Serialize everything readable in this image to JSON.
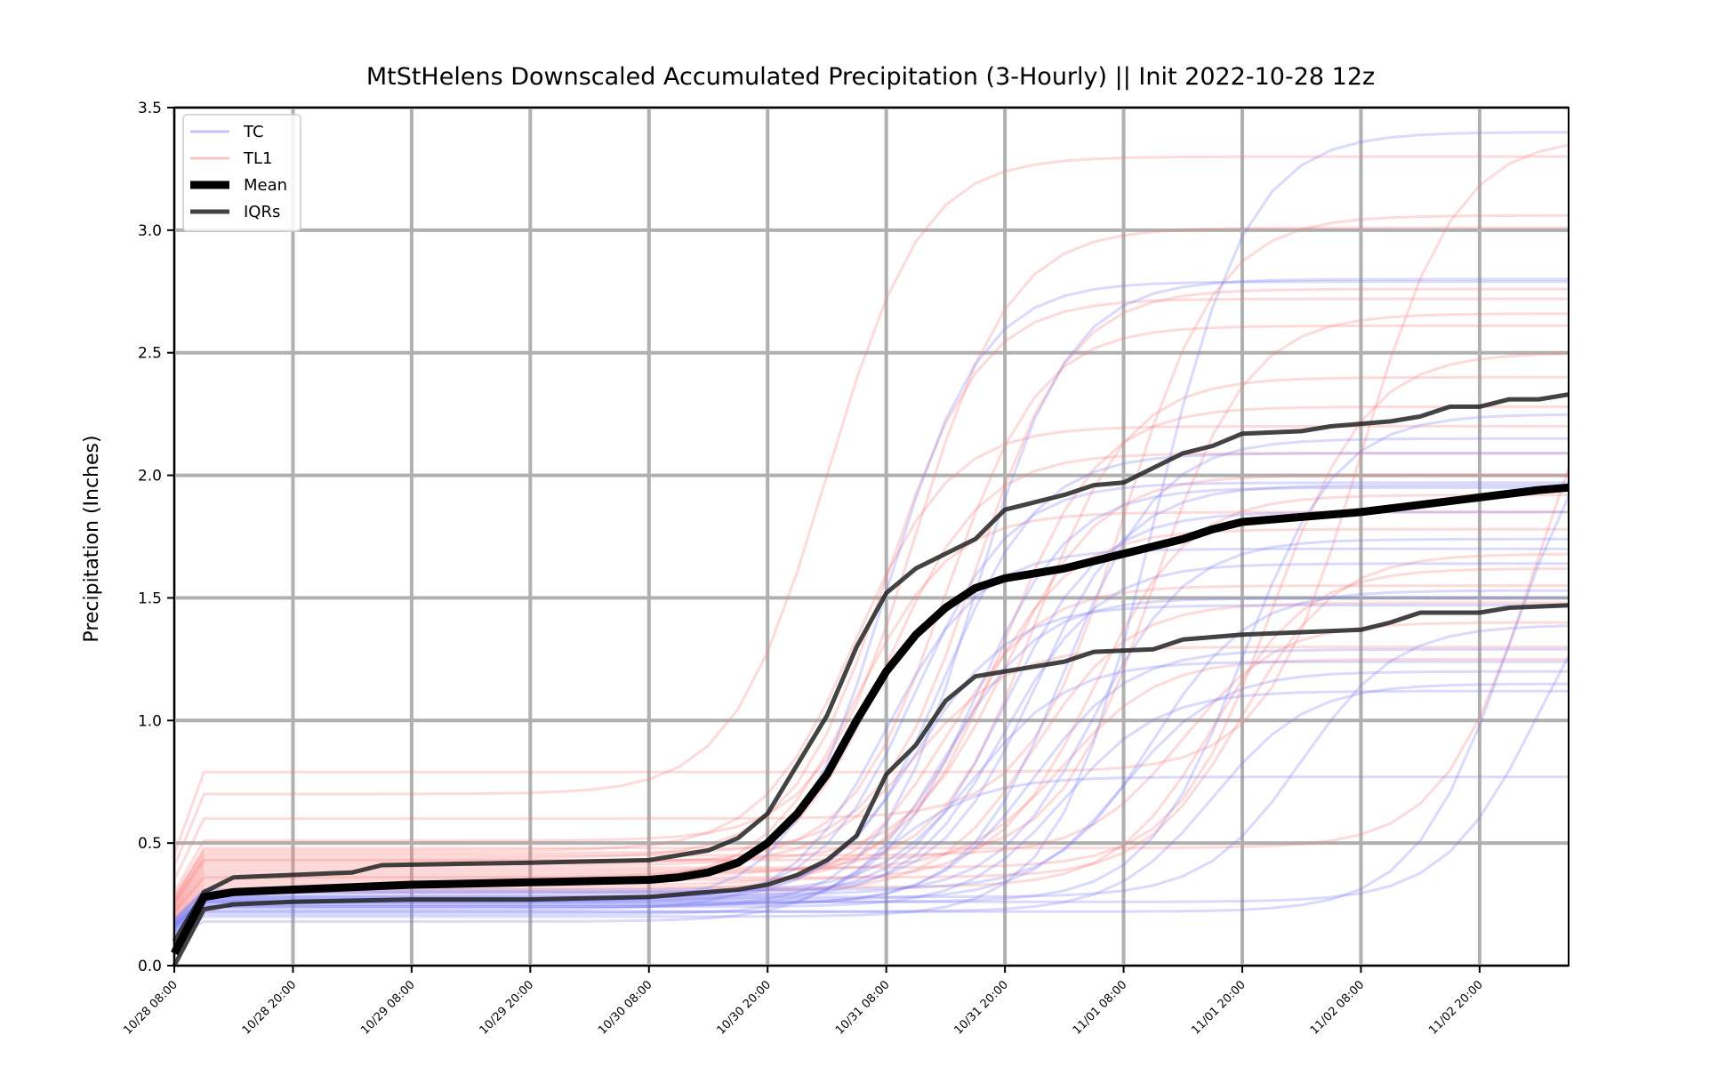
{
  "chart_data": {
    "type": "line",
    "title": "MtStHelens Downscaled Accumulated Precipitation (3-Hourly) || Init 2022-10-28 12z",
    "xlabel": "",
    "ylabel": "Precipitation (Inches)",
    "ylim": [
      0,
      3.5
    ],
    "xlim": [
      0,
      47
    ],
    "grid": true,
    "legend_position": "top-left",
    "x_ticks": [
      {
        "x": 0,
        "label": "10/28 08:00"
      },
      {
        "x": 4,
        "label": "10/28 20:00"
      },
      {
        "x": 8,
        "label": "10/29 08:00"
      },
      {
        "x": 12,
        "label": "10/29 20:00"
      },
      {
        "x": 16,
        "label": "10/30 08:00"
      },
      {
        "x": 20,
        "label": "10/30 20:00"
      },
      {
        "x": 24,
        "label": "10/31 08:00"
      },
      {
        "x": 28,
        "label": "10/31 20:00"
      },
      {
        "x": 32,
        "label": "11/01 08:00"
      },
      {
        "x": 36,
        "label": "11/01 20:00"
      },
      {
        "x": 40,
        "label": "11/02 08:00"
      },
      {
        "x": 44,
        "label": "11/02 20:00"
      }
    ],
    "y_ticks": [
      {
        "y": 0.0,
        "label": "0.0"
      },
      {
        "y": 0.5,
        "label": "0.5"
      },
      {
        "y": 1.0,
        "label": "1.0"
      },
      {
        "y": 1.5,
        "label": "1.5"
      },
      {
        "y": 2.0,
        "label": "2.0"
      },
      {
        "y": 2.5,
        "label": "2.5"
      },
      {
        "y": 3.0,
        "label": "3.0"
      },
      {
        "y": 3.5,
        "label": "3.5"
      }
    ],
    "legend": [
      {
        "label": "TC",
        "color": "#7a7af5"
      },
      {
        "label": "TL1",
        "color": "#f77f7f"
      },
      {
        "label": "Mean",
        "color": "#000000"
      },
      {
        "label": "IQRs",
        "color": "#222222"
      }
    ],
    "mean_series": {
      "name": "Mean",
      "color": "#000000",
      "points": [
        [
          0,
          0.05
        ],
        [
          1,
          0.28
        ],
        [
          2,
          0.3
        ],
        [
          4,
          0.31
        ],
        [
          8,
          0.33
        ],
        [
          12,
          0.34
        ],
        [
          16,
          0.35
        ],
        [
          17,
          0.36
        ],
        [
          18,
          0.38
        ],
        [
          19,
          0.42
        ],
        [
          20,
          0.5
        ],
        [
          21,
          0.62
        ],
        [
          22,
          0.78
        ],
        [
          23,
          1.0
        ],
        [
          24,
          1.2
        ],
        [
          25,
          1.35
        ],
        [
          26,
          1.46
        ],
        [
          27,
          1.54
        ],
        [
          28,
          1.58
        ],
        [
          30,
          1.62
        ],
        [
          32,
          1.68
        ],
        [
          34,
          1.74
        ],
        [
          35,
          1.78
        ],
        [
          36,
          1.81
        ],
        [
          38,
          1.83
        ],
        [
          40,
          1.85
        ],
        [
          42,
          1.88
        ],
        [
          44,
          1.91
        ],
        [
          46,
          1.94
        ],
        [
          47,
          1.95
        ]
      ]
    },
    "iqr_series": [
      {
        "name": "IQR upper",
        "color": "#222222",
        "points": [
          [
            0,
            0.1
          ],
          [
            1,
            0.3
          ],
          [
            2,
            0.36
          ],
          [
            4,
            0.37
          ],
          [
            6,
            0.38
          ],
          [
            7,
            0.41
          ],
          [
            12,
            0.42
          ],
          [
            16,
            0.43
          ],
          [
            18,
            0.47
          ],
          [
            19,
            0.52
          ],
          [
            20,
            0.62
          ],
          [
            21,
            0.82
          ],
          [
            22,
            1.02
          ],
          [
            23,
            1.3
          ],
          [
            24,
            1.52
          ],
          [
            25,
            1.62
          ],
          [
            26,
            1.68
          ],
          [
            27,
            1.74
          ],
          [
            28,
            1.86
          ],
          [
            30,
            1.92
          ],
          [
            31,
            1.96
          ],
          [
            32,
            1.97
          ],
          [
            33,
            2.03
          ],
          [
            34,
            2.09
          ],
          [
            35,
            2.12
          ],
          [
            36,
            2.17
          ],
          [
            38,
            2.18
          ],
          [
            39,
            2.2
          ],
          [
            41,
            2.22
          ],
          [
            42,
            2.24
          ],
          [
            43,
            2.28
          ],
          [
            44,
            2.28
          ],
          [
            45,
            2.31
          ],
          [
            46,
            2.31
          ],
          [
            47,
            2.33
          ]
        ]
      },
      {
        "name": "IQR lower",
        "color": "#222222",
        "points": [
          [
            0,
            0.0
          ],
          [
            1,
            0.23
          ],
          [
            2,
            0.25
          ],
          [
            4,
            0.26
          ],
          [
            8,
            0.27
          ],
          [
            12,
            0.27
          ],
          [
            16,
            0.28
          ],
          [
            18,
            0.3
          ],
          [
            19,
            0.31
          ],
          [
            20,
            0.33
          ],
          [
            21,
            0.37
          ],
          [
            22,
            0.43
          ],
          [
            23,
            0.53
          ],
          [
            24,
            0.78
          ],
          [
            25,
            0.9
          ],
          [
            26,
            1.08
          ],
          [
            27,
            1.18
          ],
          [
            28,
            1.2
          ],
          [
            30,
            1.24
          ],
          [
            31,
            1.28
          ],
          [
            33,
            1.29
          ],
          [
            34,
            1.33
          ],
          [
            36,
            1.35
          ],
          [
            38,
            1.36
          ],
          [
            40,
            1.37
          ],
          [
            41,
            1.4
          ],
          [
            42,
            1.44
          ],
          [
            44,
            1.44
          ],
          [
            45,
            1.46
          ],
          [
            47,
            1.47
          ]
        ]
      }
    ],
    "tc_members": [
      {
        "name": "TC",
        "finals": [
          3.4,
          2.8,
          2.79,
          2.4,
          2.15,
          2.09,
          1.97,
          1.96,
          1.95,
          1.8,
          1.74,
          1.7,
          1.64,
          1.53,
          1.5,
          1.47,
          1.39,
          1.29,
          1.24,
          1.2,
          1.15,
          1.12,
          0.77,
          2.25,
          1.85
        ],
        "starts": [
          0.2,
          0.24,
          0.26,
          0.22,
          0.25,
          0.28,
          0.27,
          0.3,
          0.24,
          0.26,
          0.29,
          0.23,
          0.27,
          0.31,
          0.21,
          0.26,
          0.28,
          0.25,
          0.3,
          0.27,
          0.22,
          0.24,
          0.18,
          0.26,
          0.28
        ],
        "rise_centers": [
          33,
          27,
          24,
          45,
          30,
          26,
          25,
          29,
          27,
          46,
          31,
          24,
          28,
          33,
          26,
          25,
          38,
          29,
          27,
          32,
          35,
          30,
          24,
          36,
          28
        ]
      }
    ],
    "tl1_members": [
      {
        "name": "TL1",
        "finals": [
          3.38,
          3.3,
          3.06,
          3.01,
          2.86,
          2.76,
          2.72,
          2.66,
          2.61,
          2.5,
          2.4,
          2.28,
          2.09,
          1.92,
          1.85,
          1.78,
          1.62,
          1.55,
          1.48,
          1.4,
          1.3,
          1.25,
          2.2,
          1.68,
          2.0
        ],
        "starts": [
          0.79,
          0.7,
          0.6,
          0.51,
          0.48,
          0.46,
          0.44,
          0.43,
          0.42,
          0.4,
          0.38,
          0.37,
          0.36,
          0.35,
          0.34,
          0.33,
          0.32,
          0.31,
          0.3,
          0.45,
          0.41,
          0.39,
          0.47,
          0.36,
          0.43
        ],
        "rise_centers": [
          40,
          22,
          32,
          25,
          46,
          27,
          24,
          33,
          26,
          37,
          29,
          28,
          24,
          31,
          23,
          27,
          35,
          26,
          29,
          34,
          25,
          30,
          23,
          36,
          28
        ]
      }
    ]
  }
}
